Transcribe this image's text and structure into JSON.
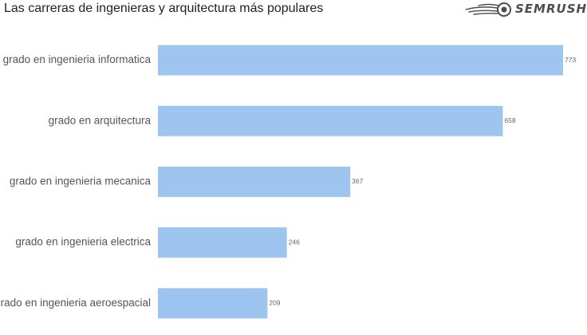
{
  "brand": {
    "logo_text": "SEMRUSH",
    "logo_icon": "fireball-icon",
    "logo_color": "#4d4d4d"
  },
  "chart_data": {
    "type": "bar",
    "orientation": "horizontal",
    "title": "Las carreras de ingenieras y arquitectura más populares",
    "xlabel": "",
    "ylabel": "",
    "categories": [
      "grado en ingenieria informatica",
      "grado en arquitectura",
      "grado en ingenieria mecanica",
      "grado en ingenieria electrica",
      "grado en ingenieria aeroespacial"
    ],
    "values": [
      773,
      658,
      367,
      246,
      209
    ],
    "data_labels": [
      "773",
      "658",
      "367",
      "246",
      "209"
    ],
    "grid": false,
    "bar_color": "#9ec5ef"
  }
}
